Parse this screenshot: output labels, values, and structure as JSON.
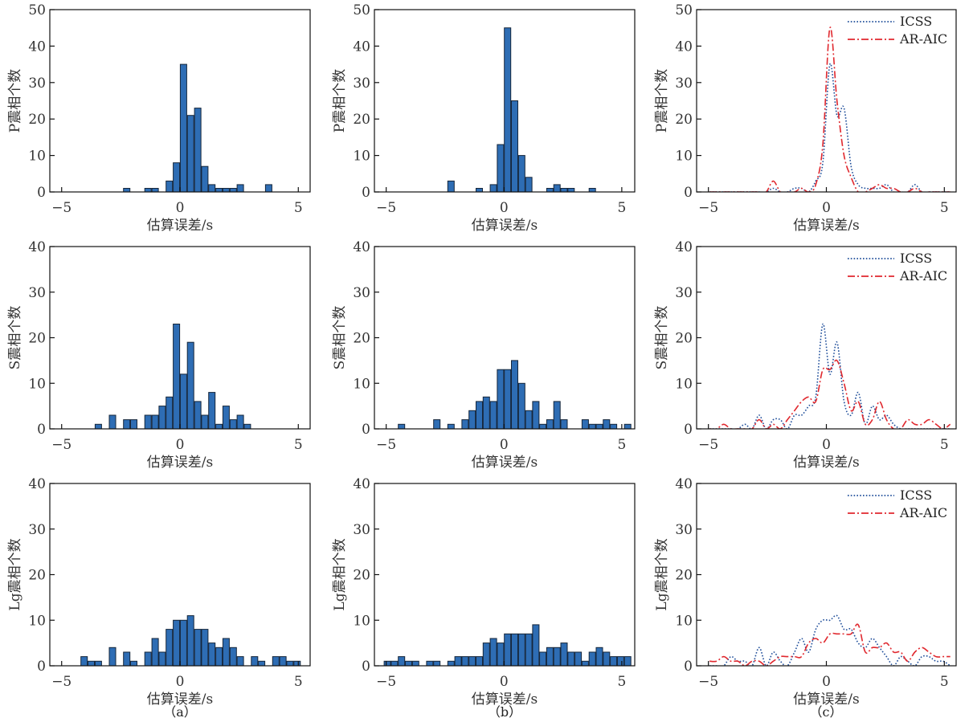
{
  "figure": {
    "captions": [
      "（a）",
      "（b）",
      "（c）"
    ]
  },
  "chart_data": {
    "type": "bar",
    "bin_centers": [
      -4.95,
      -4.65,
      -4.35,
      -4.05,
      -3.75,
      -3.45,
      -3.15,
      -2.85,
      -2.55,
      -2.25,
      -1.95,
      -1.65,
      -1.35,
      -1.05,
      -0.75,
      -0.45,
      -0.15,
      0.15,
      0.45,
      0.75,
      1.05,
      1.35,
      1.65,
      1.95,
      2.25,
      2.55,
      2.85,
      3.15,
      3.45,
      3.75,
      4.05,
      4.35,
      4.65,
      4.95,
      5.25
    ],
    "colors": {
      "bar": "#2e6db4",
      "bar_edge": "#16263a",
      "icss": "#1f4e9a",
      "ar_aic": "#e0282e"
    },
    "legend_position": "top-right",
    "panels": [
      {
        "id": "a-P",
        "column": "a",
        "type": "bar",
        "ylabel": "P震相个数",
        "xlabel": "估算误差/s",
        "xlim": [
          -5.5,
          5.5
        ],
        "ylim": [
          0,
          50
        ],
        "xticks": [
          -5,
          0,
          5
        ],
        "xtick_labels": [
          "−5",
          "0",
          "5"
        ],
        "yticks": [
          0,
          10,
          20,
          30,
          40,
          50
        ],
        "ytick_labels": [
          "0",
          "10",
          "20",
          "30",
          "40",
          "50"
        ],
        "values": [
          0,
          0,
          0,
          0,
          0,
          0,
          0,
          0,
          0,
          1,
          0,
          0,
          1,
          1,
          0,
          3,
          8,
          35,
          21,
          23,
          7,
          2,
          1,
          1,
          1,
          2,
          0,
          0,
          0,
          2,
          0,
          0,
          0,
          0,
          0
        ]
      },
      {
        "id": "b-P",
        "column": "b",
        "type": "bar",
        "ylabel": "P震相个数",
        "xlabel": "估算误差/s",
        "xlim": [
          -5.5,
          5.55
        ],
        "ylim": [
          0,
          50
        ],
        "xticks": [
          -5,
          0,
          5
        ],
        "xtick_labels": [
          "−5",
          "0",
          "5"
        ],
        "yticks": [
          0,
          10,
          20,
          30,
          40,
          50
        ],
        "ytick_labels": [
          "0",
          "10",
          "20",
          "30",
          "40",
          "50"
        ],
        "values": [
          0,
          0,
          0,
          0,
          0,
          0,
          0,
          0,
          0,
          3,
          0,
          0,
          0,
          1,
          0,
          2,
          13,
          45,
          25,
          10,
          4,
          0,
          0,
          1,
          2,
          1,
          1,
          0,
          0,
          1,
          0,
          0,
          0,
          0,
          0
        ]
      },
      {
        "id": "c-P",
        "column": "c",
        "type": "line",
        "ylabel": "P震相个数",
        "xlabel": "估算误差/s",
        "xlim": [
          -5.5,
          5.5
        ],
        "ylim": [
          0,
          50
        ],
        "xticks": [
          -5,
          0,
          5
        ],
        "xtick_labels": [
          "−5",
          "0",
          "5"
        ],
        "yticks": [
          0,
          10,
          20,
          30,
          40,
          50
        ],
        "ytick_labels": [
          "0",
          "10",
          "20",
          "30",
          "40",
          "50"
        ],
        "series": [
          {
            "name": "ICSS",
            "style": "dotted",
            "values": [
              0,
              0,
              0,
              0,
              0,
              0,
              0,
              0,
              0,
              1,
              0,
              0,
              1,
              1,
              0,
              3,
              8,
              35,
              21,
              23,
              7,
              2,
              1,
              1,
              1,
              2,
              0,
              0,
              0,
              2,
              0,
              0,
              0,
              0,
              0
            ]
          },
          {
            "name": "AR-AIC",
            "style": "dash-dot",
            "values": [
              0,
              0,
              0,
              0,
              0,
              0,
              0,
              0,
              0,
              3,
              0,
              0,
              0,
              1,
              0,
              2,
              13,
              45,
              25,
              10,
              4,
              0,
              0,
              1,
              2,
              1,
              1,
              0,
              0,
              1,
              0,
              0,
              0,
              0,
              0
            ]
          }
        ]
      },
      {
        "id": "a-S",
        "column": "a",
        "type": "bar",
        "ylabel": "S震相个数",
        "xlabel": "估算误差/s",
        "xlim": [
          -5.5,
          5.5
        ],
        "ylim": [
          0,
          40
        ],
        "xticks": [
          -5,
          0,
          5
        ],
        "xtick_labels": [
          "−5",
          "0",
          "5"
        ],
        "yticks": [
          0,
          10,
          20,
          30,
          40
        ],
        "ytick_labels": [
          "0",
          "10",
          "20",
          "30",
          "40"
        ],
        "values": [
          0,
          0,
          0,
          0,
          0,
          1,
          0,
          3,
          0,
          2,
          2,
          0,
          3,
          3,
          5,
          7,
          23,
          12,
          19,
          6,
          3,
          8,
          1,
          5,
          2,
          3,
          1,
          0,
          0,
          0,
          0,
          0,
          0,
          0,
          0
        ]
      },
      {
        "id": "b-S",
        "column": "b",
        "type": "bar",
        "ylabel": "S震相个数",
        "xlabel": "估算误差/s",
        "xlim": [
          -5.5,
          5.55
        ],
        "ylim": [
          0,
          40
        ],
        "xticks": [
          -5,
          0,
          5
        ],
        "xtick_labels": [
          "−5",
          "0",
          "5"
        ],
        "yticks": [
          0,
          10,
          20,
          30,
          40
        ],
        "ytick_labels": [
          "0",
          "10",
          "20",
          "30",
          "40"
        ],
        "values": [
          0,
          0,
          1,
          0,
          0,
          0,
          0,
          2,
          0,
          1,
          0,
          2,
          4,
          6,
          7,
          6,
          13,
          13,
          15,
          10,
          4,
          6,
          1,
          2,
          6,
          2,
          0,
          0,
          2,
          1,
          1,
          2,
          1,
          0,
          1
        ]
      },
      {
        "id": "c-S",
        "column": "c",
        "type": "line",
        "ylabel": "S震相个数",
        "xlabel": "估算误差/s",
        "xlim": [
          -5.5,
          5.5
        ],
        "ylim": [
          0,
          40
        ],
        "xticks": [
          -5,
          0,
          5
        ],
        "xtick_labels": [
          "−5",
          "0",
          "5"
        ],
        "yticks": [
          0,
          10,
          20,
          30,
          40
        ],
        "ytick_labels": [
          "0",
          "10",
          "20",
          "30",
          "40"
        ],
        "series": [
          {
            "name": "ICSS",
            "style": "dotted",
            "values": [
              0,
              0,
              0,
              0,
              0,
              1,
              0,
              3,
              0,
              2,
              2,
              0,
              3,
              3,
              5,
              7,
              23,
              12,
              19,
              6,
              3,
              8,
              1,
              5,
              2,
              3,
              1,
              0,
              0,
              0,
              0,
              0,
              0,
              0,
              0
            ]
          },
          {
            "name": "AR-AIC",
            "style": "dash-dot",
            "values": [
              0,
              0,
              1,
              0,
              0,
              0,
              0,
              2,
              0,
              1,
              0,
              2,
              4,
              6,
              7,
              6,
              13,
              13,
              15,
              10,
              4,
              6,
              1,
              2,
              6,
              2,
              0,
              0,
              2,
              1,
              1,
              2,
              1,
              0,
              1
            ]
          }
        ]
      },
      {
        "id": "a-Lg",
        "column": "a",
        "type": "bar",
        "ylabel": "Lg震相个数",
        "xlabel": "估算误差/s",
        "xlim": [
          -5.5,
          5.5
        ],
        "ylim": [
          0,
          40
        ],
        "xticks": [
          -5,
          0,
          5
        ],
        "xtick_labels": [
          "−5",
          "0",
          "5"
        ],
        "yticks": [
          0,
          10,
          20,
          30,
          40
        ],
        "ytick_labels": [
          "0",
          "10",
          "20",
          "30",
          "40"
        ],
        "values": [
          0,
          0,
          0,
          2,
          1,
          1,
          0,
          4,
          0,
          3,
          1,
          0,
          3,
          6,
          3,
          8,
          10,
          10,
          11,
          8,
          8,
          5,
          4,
          6,
          4,
          2,
          0,
          2,
          1,
          0,
          2,
          2,
          1,
          1,
          0
        ]
      },
      {
        "id": "b-Lg",
        "column": "b",
        "type": "bar",
        "ylabel": "Lg震相个数",
        "xlabel": "估算误差/s",
        "xlim": [
          -5.5,
          5.55
        ],
        "ylim": [
          0,
          40
        ],
        "xticks": [
          -5,
          0,
          5
        ],
        "xtick_labels": [
          "−5",
          "0",
          "5"
        ],
        "yticks": [
          0,
          10,
          20,
          30,
          40
        ],
        "ytick_labels": [
          "0",
          "10",
          "20",
          "30",
          "40"
        ],
        "values": [
          1,
          1,
          2,
          1,
          1,
          0,
          1,
          1,
          0,
          1,
          2,
          2,
          2,
          2,
          5,
          6,
          5,
          7,
          7,
          7,
          7,
          9,
          3,
          4,
          4,
          5,
          3,
          3,
          1,
          3,
          4,
          3,
          2,
          2,
          2
        ]
      },
      {
        "id": "c-Lg",
        "column": "c",
        "type": "line",
        "ylabel": "Lg震相个数",
        "xlabel": "估算误差/s",
        "xlim": [
          -5.5,
          5.5
        ],
        "ylim": [
          0,
          40
        ],
        "xticks": [
          -5,
          0,
          5
        ],
        "xtick_labels": [
          "−5",
          "0",
          "5"
        ],
        "yticks": [
          0,
          10,
          20,
          30,
          40
        ],
        "ytick_labels": [
          "0",
          "10",
          "20",
          "30",
          "40"
        ],
        "series": [
          {
            "name": "ICSS",
            "style": "dotted",
            "values": [
              0,
              0,
              0,
              2,
              1,
              1,
              0,
              4,
              0,
              3,
              1,
              0,
              3,
              6,
              3,
              8,
              10,
              10,
              11,
              8,
              8,
              5,
              4,
              6,
              4,
              2,
              0,
              2,
              1,
              0,
              2,
              2,
              1,
              1,
              0
            ]
          },
          {
            "name": "AR-AIC",
            "style": "dash-dot",
            "values": [
              1,
              1,
              2,
              1,
              1,
              0,
              1,
              1,
              0,
              1,
              2,
              2,
              2,
              2,
              5,
              6,
              5,
              7,
              7,
              7,
              7,
              9,
              3,
              4,
              4,
              5,
              3,
              3,
              1,
              3,
              4,
              3,
              2,
              2,
              2
            ]
          }
        ]
      }
    ]
  }
}
